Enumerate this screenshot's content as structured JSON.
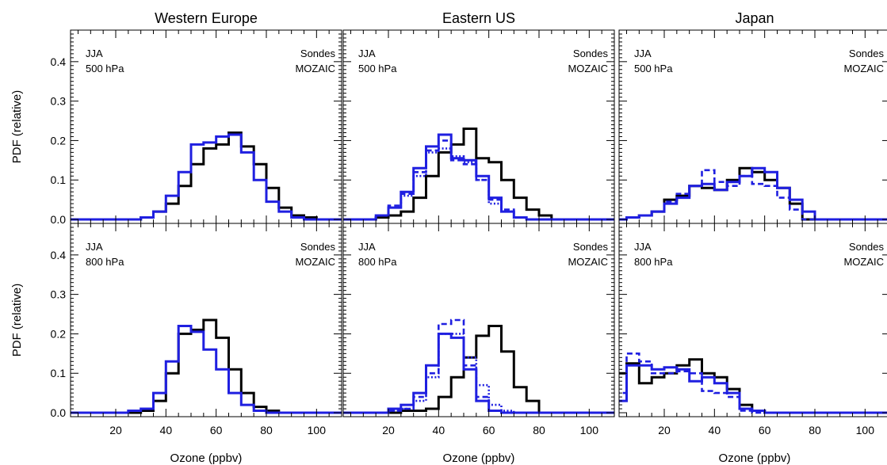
{
  "figure": {
    "ylabel": "PDF (relative)",
    "xlabel": "Ozone (ppbv)",
    "legend": {
      "sondes_label": "Sondes",
      "mozaic_label": "MOZAIC"
    },
    "colors": {
      "sondes": "#000000",
      "mozaic": "#1f1fe0"
    },
    "columns": [
      "Western Europe",
      "Eastern US",
      "Japan"
    ],
    "rows": [
      {
        "season": "JJA",
        "level": "500 hPa"
      },
      {
        "season": "JJA",
        "level": "800 hPa"
      }
    ]
  },
  "chart_data": [
    {
      "type": "line",
      "step": true,
      "region": "Western Europe",
      "level": "500 hPa",
      "x_tick_labels": [],
      "xlim": [
        2,
        110
      ],
      "ylim": [
        -0.01,
        0.48
      ],
      "y_tick_labels": [
        "0.0",
        "0.1",
        "0.2",
        "0.3",
        "0.4"
      ],
      "bin_edges": [
        0,
        5,
        10,
        15,
        20,
        25,
        30,
        35,
        40,
        45,
        50,
        55,
        60,
        65,
        70,
        75,
        80,
        85,
        90,
        95,
        100,
        105,
        110
      ],
      "series": [
        {
          "name": "Sondes",
          "style": "solid",
          "color": "#000000",
          "values": [
            0.0,
            0.0,
            0.0,
            0.0,
            0.0,
            0.0,
            0.005,
            0.02,
            0.04,
            0.085,
            0.14,
            0.18,
            0.19,
            0.22,
            0.185,
            0.14,
            0.08,
            0.03,
            0.01,
            0.005,
            0.0,
            0.0
          ]
        },
        {
          "name": "MOZAIC",
          "style": "solid",
          "color": "#1f1fe0",
          "values": [
            0.0,
            0.0,
            0.0,
            0.0,
            0.0,
            0.0,
            0.005,
            0.02,
            0.06,
            0.12,
            0.19,
            0.195,
            0.21,
            0.215,
            0.17,
            0.1,
            0.045,
            0.02,
            0.005,
            0.0,
            0.0,
            0.0
          ]
        }
      ]
    },
    {
      "type": "line",
      "step": true,
      "region": "Eastern US",
      "level": "500 hPa",
      "x_tick_labels": [],
      "xlim": [
        2,
        110
      ],
      "ylim": [
        -0.01,
        0.48
      ],
      "y_tick_labels": [],
      "bin_edges": [
        0,
        5,
        10,
        15,
        20,
        25,
        30,
        35,
        40,
        45,
        50,
        55,
        60,
        65,
        70,
        75,
        80,
        85,
        90,
        95,
        100,
        105,
        110
      ],
      "series": [
        {
          "name": "Sondes",
          "style": "solid",
          "color": "#000000",
          "values": [
            0.0,
            0.0,
            0.0,
            0.005,
            0.01,
            0.02,
            0.055,
            0.11,
            0.17,
            0.19,
            0.23,
            0.155,
            0.145,
            0.1,
            0.055,
            0.025,
            0.01,
            0.0,
            0.0,
            0.0,
            0.0,
            0.0
          ]
        },
        {
          "name": "MOZAIC",
          "style": "solid",
          "color": "#1f1fe0",
          "values": [
            0.0,
            0.0,
            0.0,
            0.01,
            0.03,
            0.07,
            0.13,
            0.185,
            0.215,
            0.155,
            0.15,
            0.11,
            0.055,
            0.02,
            0.005,
            0.0,
            0.0,
            0.0,
            0.0,
            0.0,
            0.0,
            0.0
          ]
        },
        {
          "name": "",
          "style": "dashed",
          "color": "#1f1fe0",
          "values": [
            0.0,
            0.0,
            0.0,
            0.01,
            0.035,
            0.065,
            0.12,
            0.175,
            0.2,
            0.15,
            0.14,
            0.1,
            0.05,
            0.025,
            0.005,
            0.0,
            0.0,
            0.0,
            0.0,
            0.0,
            0.0,
            0.0
          ]
        },
        {
          "name": "",
          "style": "dotted",
          "color": "#1f1fe0",
          "values": [
            0.0,
            0.0,
            0.0,
            0.01,
            0.03,
            0.06,
            0.11,
            0.17,
            0.18,
            0.16,
            0.145,
            0.1,
            0.04,
            0.02,
            0.005,
            0.0,
            0.0,
            0.0,
            0.0,
            0.0,
            0.0,
            0.0
          ]
        }
      ]
    },
    {
      "type": "line",
      "step": true,
      "region": "Japan",
      "level": "500 hPa",
      "x_tick_labels": [],
      "xlim": [
        2,
        110
      ],
      "ylim": [
        -0.01,
        0.48
      ],
      "y_tick_labels": [],
      "bin_edges": [
        0,
        5,
        10,
        15,
        20,
        25,
        30,
        35,
        40,
        45,
        50,
        55,
        60,
        65,
        70,
        75,
        80,
        85,
        90,
        95,
        100,
        105,
        110
      ],
      "series": [
        {
          "name": "Sondes",
          "style": "solid",
          "color": "#000000",
          "values": [
            0.0,
            0.005,
            0.01,
            0.02,
            0.05,
            0.06,
            0.085,
            0.08,
            0.075,
            0.1,
            0.13,
            0.12,
            0.1,
            0.08,
            0.04,
            0.0,
            0.0,
            0.0,
            0.0,
            0.0,
            0.0,
            0.0
          ]
        },
        {
          "name": "MOZAIC",
          "style": "solid",
          "color": "#1f1fe0",
          "values": [
            0.0,
            0.005,
            0.01,
            0.02,
            0.04,
            0.055,
            0.085,
            0.09,
            0.075,
            0.095,
            0.11,
            0.13,
            0.12,
            0.08,
            0.05,
            0.02,
            0.0,
            0.0,
            0.0,
            0.0,
            0.0,
            0.0
          ]
        },
        {
          "name": "",
          "style": "dashed",
          "color": "#1f1fe0",
          "values": [
            0.0,
            0.005,
            0.01,
            0.02,
            0.045,
            0.065,
            0.085,
            0.125,
            0.095,
            0.085,
            0.11,
            0.09,
            0.085,
            0.055,
            0.025,
            0.0,
            0.0,
            0.0,
            0.0,
            0.0,
            0.0,
            0.0
          ]
        }
      ]
    },
    {
      "type": "line",
      "step": true,
      "region": "Western Europe",
      "level": "800 hPa",
      "x_tick_labels": [
        "20",
        "40",
        "60",
        "80",
        "100"
      ],
      "xlim": [
        2,
        110
      ],
      "ylim": [
        -0.01,
        0.48
      ],
      "y_tick_labels": [
        "0.0",
        "0.1",
        "0.2",
        "0.3",
        "0.4"
      ],
      "bin_edges": [
        0,
        5,
        10,
        15,
        20,
        25,
        30,
        35,
        40,
        45,
        50,
        55,
        60,
        65,
        70,
        75,
        80,
        85,
        90,
        95,
        100,
        105,
        110
      ],
      "series": [
        {
          "name": "Sondes",
          "style": "solid",
          "color": "#000000",
          "values": [
            0.0,
            0.0,
            0.0,
            0.0,
            0.0,
            0.0,
            0.005,
            0.03,
            0.1,
            0.2,
            0.21,
            0.235,
            0.19,
            0.11,
            0.05,
            0.015,
            0.005,
            0.0,
            0.0,
            0.0,
            0.0,
            0.0
          ]
        },
        {
          "name": "MOZAIC",
          "style": "solid",
          "color": "#1f1fe0",
          "values": [
            0.0,
            0.0,
            0.0,
            0.0,
            0.0,
            0.005,
            0.01,
            0.05,
            0.13,
            0.22,
            0.205,
            0.16,
            0.11,
            0.05,
            0.02,
            0.005,
            0.0,
            0.0,
            0.0,
            0.0,
            0.0,
            0.0
          ]
        }
      ]
    },
    {
      "type": "line",
      "step": true,
      "region": "Eastern US",
      "level": "800 hPa",
      "x_tick_labels": [
        "20",
        "40",
        "60",
        "80",
        "100"
      ],
      "xlim": [
        2,
        110
      ],
      "ylim": [
        -0.01,
        0.48
      ],
      "y_tick_labels": [],
      "bin_edges": [
        0,
        5,
        10,
        15,
        20,
        25,
        30,
        35,
        40,
        45,
        50,
        55,
        60,
        65,
        70,
        75,
        80,
        85,
        90,
        95,
        100,
        105,
        110
      ],
      "series": [
        {
          "name": "Sondes",
          "style": "solid",
          "color": "#000000",
          "values": [
            0.0,
            0.0,
            0.0,
            0.0,
            0.0,
            0.005,
            0.005,
            0.01,
            0.04,
            0.09,
            0.14,
            0.195,
            0.22,
            0.155,
            0.065,
            0.03,
            0.0,
            0.0,
            0.0,
            0.0,
            0.0,
            0.0
          ]
        },
        {
          "name": "MOZAIC",
          "style": "solid",
          "color": "#1f1fe0",
          "values": [
            0.0,
            0.0,
            0.0,
            0.0,
            0.01,
            0.02,
            0.05,
            0.12,
            0.2,
            0.19,
            0.11,
            0.03,
            0.005,
            0.0,
            0.0,
            0.0,
            0.0,
            0.0,
            0.0,
            0.0,
            0.0,
            0.0
          ]
        },
        {
          "name": "",
          "style": "dashed",
          "color": "#1f1fe0",
          "values": [
            0.0,
            0.0,
            0.0,
            0.0,
            0.005,
            0.01,
            0.04,
            0.1,
            0.225,
            0.235,
            0.12,
            0.04,
            0.005,
            0.0,
            0.0,
            0.0,
            0.0,
            0.0,
            0.0,
            0.0,
            0.0,
            0.0
          ]
        },
        {
          "name": "",
          "style": "dotted",
          "color": "#1f1fe0",
          "values": [
            0.0,
            0.0,
            0.0,
            0.0,
            0.005,
            0.01,
            0.03,
            0.09,
            0.2,
            0.2,
            0.14,
            0.07,
            0.02,
            0.005,
            0.0,
            0.0,
            0.0,
            0.0,
            0.0,
            0.0,
            0.0,
            0.0
          ]
        }
      ]
    },
    {
      "type": "line",
      "step": true,
      "region": "Japan",
      "level": "800 hPa",
      "x_tick_labels": [
        "20",
        "40",
        "60",
        "80",
        "100"
      ],
      "xlim": [
        2,
        110
      ],
      "ylim": [
        -0.01,
        0.48
      ],
      "y_tick_labels": [],
      "bin_edges": [
        0,
        5,
        10,
        15,
        20,
        25,
        30,
        35,
        40,
        45,
        50,
        55,
        60,
        65,
        70,
        75,
        80,
        85,
        90,
        95,
        100,
        105,
        110
      ],
      "series": [
        {
          "name": "Sondes",
          "style": "solid",
          "color": "#000000",
          "values": [
            0.1,
            0.125,
            0.075,
            0.09,
            0.1,
            0.12,
            0.135,
            0.1,
            0.09,
            0.06,
            0.02,
            0.005,
            0.0,
            0.0,
            0.0,
            0.0,
            0.0,
            0.0,
            0.0,
            0.0,
            0.0,
            0.0
          ]
        },
        {
          "name": "MOZAIC",
          "style": "solid",
          "color": "#1f1fe0",
          "values": [
            0.03,
            0.12,
            0.12,
            0.11,
            0.115,
            0.11,
            0.08,
            0.09,
            0.075,
            0.05,
            0.01,
            0.005,
            0.0,
            0.0,
            0.0,
            0.0,
            0.0,
            0.0,
            0.0,
            0.0,
            0.0,
            0.0
          ]
        },
        {
          "name": "",
          "style": "dashed",
          "color": "#1f1fe0",
          "values": [
            0.05,
            0.15,
            0.13,
            0.1,
            0.1,
            0.105,
            0.1,
            0.055,
            0.05,
            0.04,
            0.005,
            0.0,
            0.0,
            0.0,
            0.0,
            0.0,
            0.0,
            0.0,
            0.0,
            0.0,
            0.0,
            0.0
          ]
        }
      ]
    }
  ]
}
